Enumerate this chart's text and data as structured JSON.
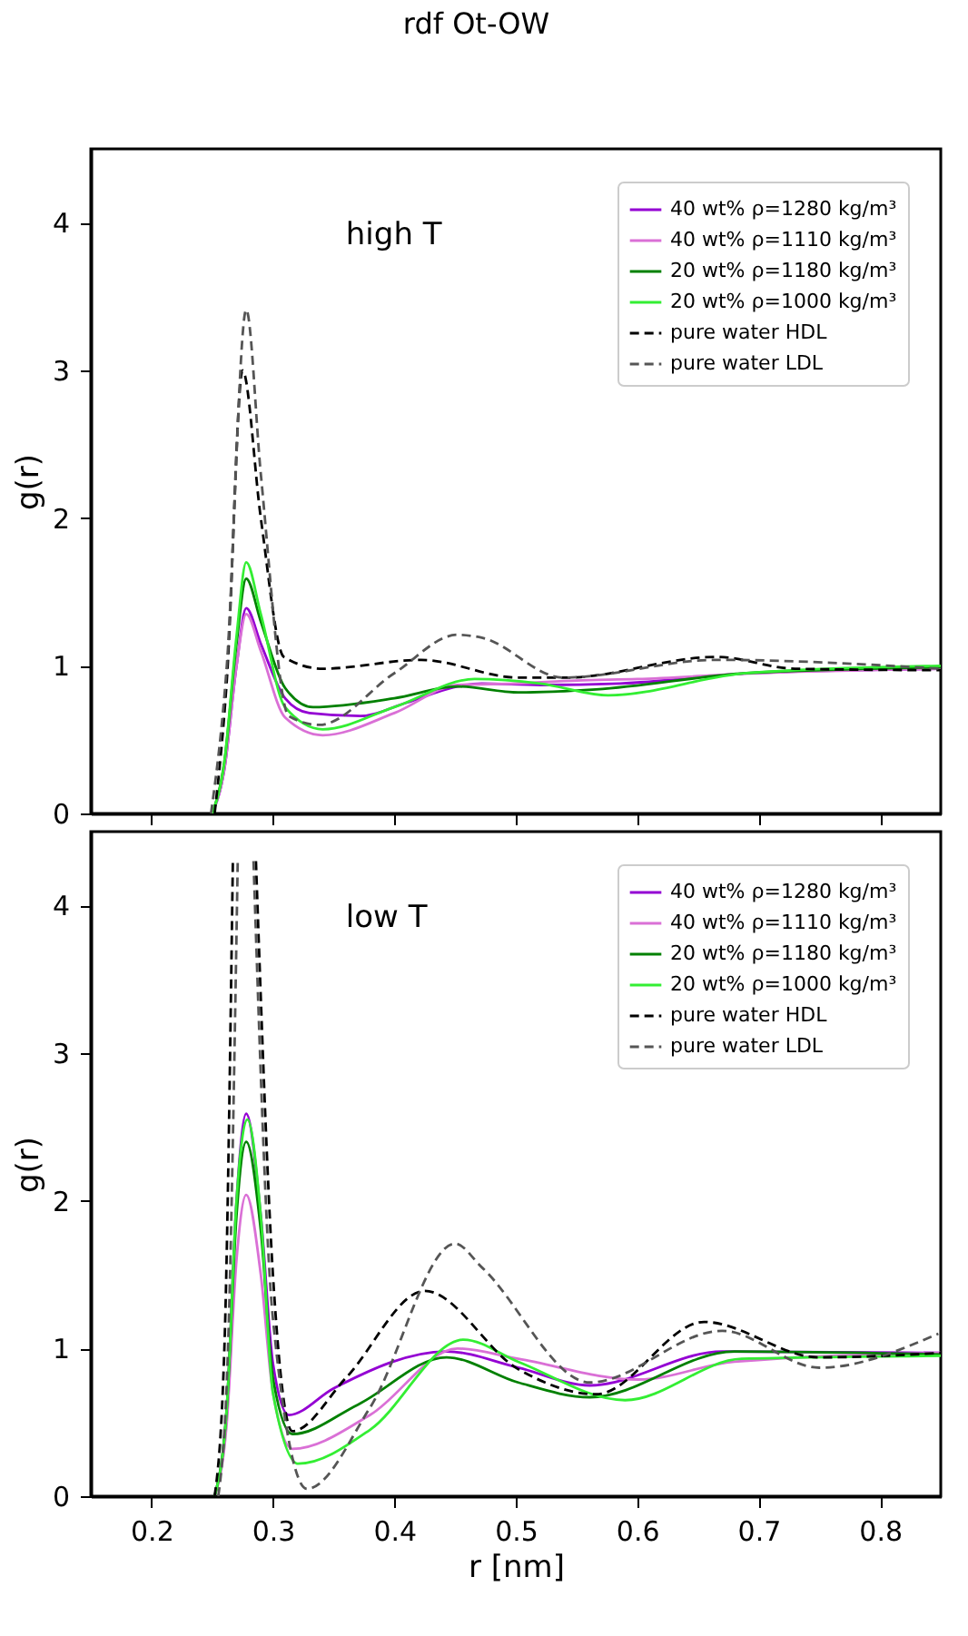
{
  "chart_data": [
    {
      "type": "line",
      "title": "rdf Ot-OW",
      "ylabel": "g(r)",
      "annotations": [
        "high T"
      ],
      "xlim": [
        0.15,
        0.85
      ],
      "xticks": [
        0.2,
        0.3,
        0.4,
        0.5,
        0.6,
        0.7,
        0.8
      ],
      "ylim": [
        0,
        4.5
      ],
      "yticks": [
        0,
        1,
        2,
        3,
        4
      ],
      "tick_labels": "y",
      "grid": false,
      "legend": "top right",
      "marker": "none",
      "series": [
        {
          "name": "40 wt% ρ=1280 kg/m³",
          "color": "#9400d3",
          "line_style": "solid",
          "x": [
            0.25,
            0.26,
            0.27,
            0.278,
            0.29,
            0.31,
            0.33,
            0.372,
            0.41,
            0.452,
            0.472,
            0.52,
            0.586,
            0.695,
            0.85
          ],
          "values": [
            0,
            0.3,
            1.0,
            1.39,
            1.15,
            0.78,
            0.68,
            0.66,
            0.75,
            0.86,
            0.88,
            0.87,
            0.88,
            0.95,
            0.98
          ]
        },
        {
          "name": "40 wt% ρ=1110 kg/m³",
          "color": "#da70d6",
          "line_style": "solid",
          "x": [
            0.25,
            0.26,
            0.27,
            0.278,
            0.29,
            0.31,
            0.341,
            0.4,
            0.452,
            0.5,
            0.55,
            0.6,
            0.7,
            0.85
          ],
          "values": [
            0,
            0.3,
            1.0,
            1.35,
            1.1,
            0.65,
            0.53,
            0.68,
            0.87,
            0.88,
            0.9,
            0.91,
            0.95,
            0.98
          ]
        },
        {
          "name": "20 wt% ρ=1180 kg/m³",
          "color": "#008000",
          "line_style": "solid",
          "x": [
            0.25,
            0.26,
            0.27,
            0.278,
            0.29,
            0.31,
            0.333,
            0.4,
            0.452,
            0.502,
            0.566,
            0.69,
            0.85
          ],
          "values": [
            0,
            0.35,
            1.15,
            1.59,
            1.3,
            0.85,
            0.72,
            0.78,
            0.86,
            0.82,
            0.84,
            0.95,
            0.99
          ]
        },
        {
          "name": "20 wt% ρ=1000 kg/m³",
          "color": "#33ee33",
          "line_style": "solid",
          "x": [
            0.25,
            0.26,
            0.27,
            0.278,
            0.29,
            0.31,
            0.341,
            0.4,
            0.466,
            0.52,
            0.576,
            0.69,
            0.85
          ],
          "values": [
            0,
            0.35,
            1.2,
            1.7,
            1.35,
            0.72,
            0.57,
            0.72,
            0.91,
            0.88,
            0.8,
            0.95,
            1.0
          ]
        },
        {
          "name": "pure water HDL",
          "color": "#000000",
          "line_style": "dashed",
          "x": [
            0.252,
            0.262,
            0.275,
            0.29,
            0.309,
            0.341,
            0.422,
            0.502,
            0.541,
            0.665,
            0.73,
            0.85
          ],
          "values": [
            0,
            0.9,
            3.0,
            2.0,
            1.06,
            0.98,
            1.04,
            0.92,
            0.92,
            1.06,
            0.98,
            0.97
          ]
        },
        {
          "name": "pure water LDL",
          "color": "#555555",
          "line_style": "dashed",
          "x": [
            0.249,
            0.262,
            0.278,
            0.29,
            0.313,
            0.338,
            0.4,
            0.452,
            0.472,
            0.539,
            0.665,
            0.85
          ],
          "values": [
            0,
            1.0,
            3.41,
            2.3,
            0.66,
            0.6,
            0.95,
            1.21,
            1.19,
            0.92,
            1.04,
            0.98
          ]
        }
      ]
    },
    {
      "type": "line",
      "xlabel": "r [nm]",
      "ylabel": "g(r)",
      "annotations": [
        "low T"
      ],
      "xlim": [
        0.15,
        0.85
      ],
      "xticks": [
        0.2,
        0.3,
        0.4,
        0.5,
        0.6,
        0.7,
        0.8
      ],
      "ylim": [
        0,
        4.5
      ],
      "yticks": [
        0,
        1,
        2,
        3,
        4
      ],
      "grid": false,
      "legend": "top right",
      "marker": "none",
      "series": [
        {
          "name": "40 wt% ρ=1280 kg/m³",
          "color": "#9400d3",
          "line_style": "solid",
          "x": [
            0.252,
            0.262,
            0.27,
            0.278,
            0.29,
            0.3,
            0.313,
            0.35,
            0.443,
            0.502,
            0.561,
            0.67,
            0.85
          ],
          "values": [
            0,
            0.6,
            2.0,
            2.59,
            1.9,
            0.9,
            0.55,
            0.73,
            0.98,
            0.87,
            0.75,
            0.98,
            0.97
          ]
        },
        {
          "name": "40 wt% ρ=1110 kg/m³",
          "color": "#da70d6",
          "line_style": "solid",
          "x": [
            0.252,
            0.262,
            0.27,
            0.278,
            0.29,
            0.3,
            0.316,
            0.38,
            0.452,
            0.502,
            0.601,
            0.68,
            0.85
          ],
          "values": [
            0,
            0.5,
            1.6,
            2.04,
            1.5,
            0.7,
            0.32,
            0.55,
            1.0,
            0.93,
            0.79,
            0.91,
            0.97
          ]
        },
        {
          "name": "20 wt% ρ=1180 kg/m³",
          "color": "#008000",
          "line_style": "solid",
          "x": [
            0.252,
            0.262,
            0.27,
            0.278,
            0.29,
            0.3,
            0.316,
            0.37,
            0.443,
            0.502,
            0.561,
            0.68,
            0.85
          ],
          "values": [
            0,
            0.6,
            1.9,
            2.4,
            1.8,
            0.8,
            0.42,
            0.62,
            0.94,
            0.77,
            0.67,
            0.98,
            0.96
          ]
        },
        {
          "name": "20 wt% ρ=1000 kg/m³",
          "color": "#33ee33",
          "line_style": "solid",
          "x": [
            0.252,
            0.262,
            0.27,
            0.279,
            0.29,
            0.3,
            0.321,
            0.38,
            0.457,
            0.502,
            0.59,
            0.686,
            0.85
          ],
          "values": [
            0,
            0.6,
            2.0,
            2.55,
            1.9,
            0.7,
            0.22,
            0.45,
            1.06,
            0.91,
            0.65,
            0.93,
            0.95
          ]
        },
        {
          "name": "pure water HDL",
          "color": "#000000",
          "line_style": "dashed",
          "x": [
            0.252,
            0.26,
            0.267,
            0.277,
            0.286,
            0.3,
            0.316,
            0.36,
            0.425,
            0.502,
            0.566,
            0.655,
            0.75,
            0.85
          ],
          "values": [
            0,
            1.0,
            4.3,
            null,
            4.3,
            1.5,
            0.44,
            0.8,
            1.39,
            0.86,
            0.69,
            1.18,
            0.94,
            0.97
          ]
        },
        {
          "name": "pure water LDL",
          "color": "#555555",
          "line_style": "dashed",
          "x": [
            0.255,
            0.263,
            0.271,
            0.278,
            0.284,
            0.3,
            0.328,
            0.38,
            0.45,
            0.472,
            0.561,
            0.67,
            0.75,
            0.848
          ],
          "values": [
            0,
            1.0,
            4.3,
            null,
            4.3,
            1.2,
            0.05,
            0.6,
            1.71,
            1.55,
            0.77,
            1.12,
            0.87,
            1.1
          ]
        }
      ]
    }
  ]
}
